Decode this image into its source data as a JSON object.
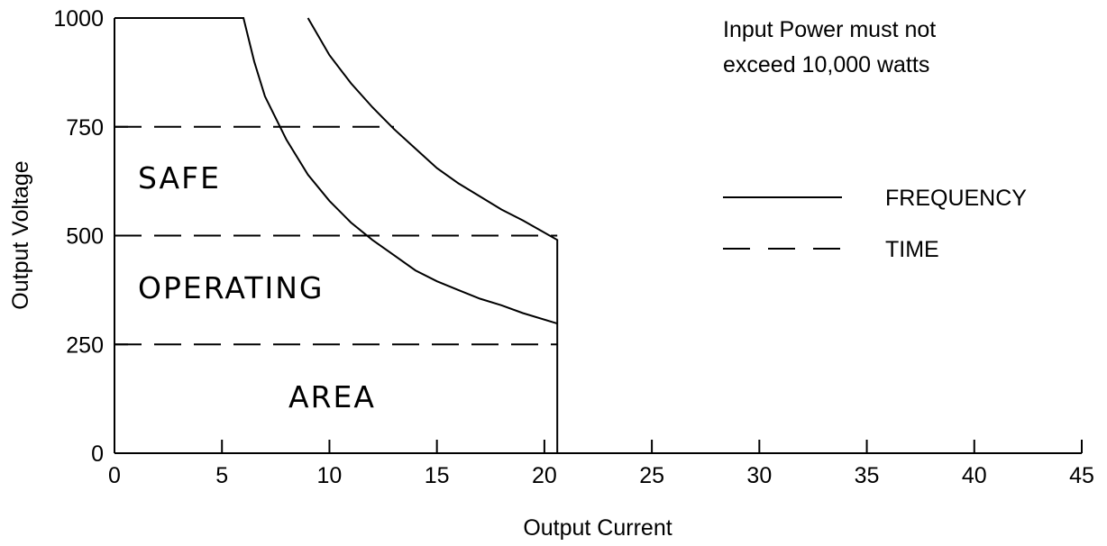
{
  "chart_data": {
    "type": "line",
    "xlabel": "Output Current",
    "ylabel": "Output Voltage",
    "xlim": [
      0,
      45
    ],
    "ylim": [
      0,
      1000
    ],
    "xticks": [
      0,
      5,
      10,
      15,
      20,
      25,
      30,
      35,
      40,
      45
    ],
    "yticks": [
      0,
      250,
      500,
      750,
      1000
    ],
    "grid": false,
    "legend": {
      "placement": "right",
      "entries": [
        {
          "label": "FREQUENCY",
          "style": "solid"
        },
        {
          "label": "TIME",
          "style": "dashed"
        }
      ]
    },
    "annotations": {
      "note_line1": "Input Power must not",
      "note_line2": "exceed 10,000 watts",
      "region_safe": "SAFE",
      "region_operating": "OPERATING",
      "region_area": "AREA"
    },
    "series": [
      {
        "style": "solid",
        "points": [
          [
            0,
            1000
          ],
          [
            6,
            1000
          ],
          [
            6.5,
            900
          ],
          [
            7,
            820
          ],
          [
            8,
            720
          ],
          [
            9,
            640
          ],
          [
            10,
            580
          ],
          [
            11,
            530
          ],
          [
            12,
            490
          ],
          [
            13,
            455
          ],
          [
            14,
            420
          ],
          [
            15,
            395
          ],
          [
            16,
            375
          ],
          [
            17,
            355
          ],
          [
            18,
            340
          ],
          [
            19,
            322
          ],
          [
            20.6,
            298
          ]
        ]
      },
      {
        "style": "solid",
        "points": [
          [
            9,
            1000
          ],
          [
            10,
            915
          ],
          [
            11,
            850
          ],
          [
            12,
            795
          ],
          [
            13,
            745
          ],
          [
            14,
            700
          ],
          [
            15,
            655
          ],
          [
            16,
            620
          ],
          [
            17,
            590
          ],
          [
            18,
            560
          ],
          [
            19,
            535
          ],
          [
            20.6,
            490
          ],
          [
            20.6,
            0
          ]
        ]
      },
      {
        "style": "dashed",
        "points": [
          [
            0,
            750
          ],
          [
            13,
            750
          ]
        ]
      },
      {
        "style": "dashed",
        "points": [
          [
            0,
            500
          ],
          [
            20.6,
            500
          ]
        ]
      },
      {
        "style": "dashed",
        "points": [
          [
            0,
            250
          ],
          [
            20.6,
            250
          ]
        ]
      }
    ]
  }
}
